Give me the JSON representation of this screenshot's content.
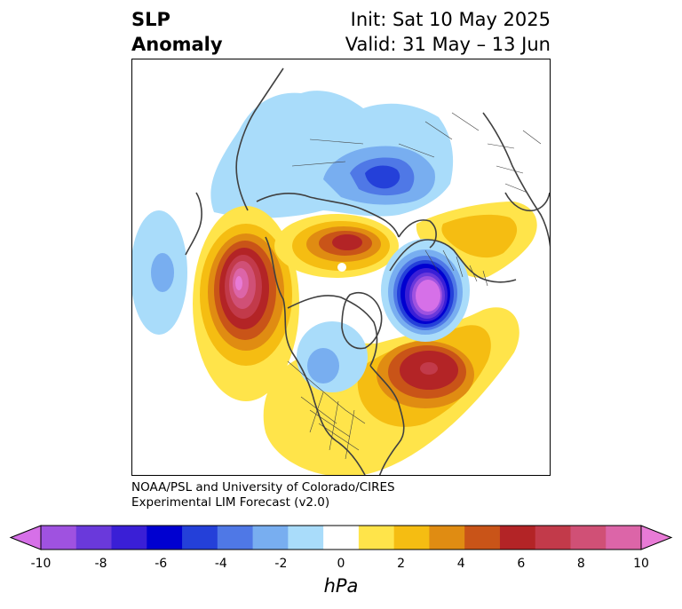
{
  "title": {
    "left_line1": "SLP",
    "left_line2": "Anomaly",
    "right_line1": "Init: Sat 10 May 2025",
    "right_line2": "Valid: 31 May – 13 Jun"
  },
  "credit": {
    "line1": "NOAA/PSL and University of Colorado/CIRES",
    "line2": "Experimental LIM Forecast (v2.0)"
  },
  "colorbar": {
    "unit": "hPa",
    "ticks": [
      "-10",
      "-8",
      "-6",
      "-4",
      "-2",
      "0",
      "2",
      "4",
      "6",
      "8",
      "10"
    ],
    "colors": [
      "#d670e8",
      "#9f52e0",
      "#6a39db",
      "#3a1fd6",
      "#0000d0",
      "#2440d9",
      "#4f78e6",
      "#78aef0",
      "#a9dcfa",
      "#ffffff",
      "#ffe44a",
      "#f5bd12",
      "#e08c12",
      "#c95418",
      "#b32426",
      "#c23a4a",
      "#d05076",
      "#dc65a8",
      "#e87bd6"
    ]
  },
  "map": {
    "projection": "north polar stereographic",
    "features": [
      {
        "name": "positive-anomaly-northeast-pacific",
        "value": "+8 to +10 hPa"
      },
      {
        "name": "positive-anomaly-north-atlantic",
        "value": "+6 hPa"
      },
      {
        "name": "positive-anomaly-siberia",
        "value": "+6 hPa"
      },
      {
        "name": "negative-anomaly-europe",
        "value": "-10 hPa"
      },
      {
        "name": "negative-anomaly-central-asia",
        "value": "-6 hPa"
      },
      {
        "name": "negative-anomaly-west-pacific",
        "value": "-4 hPa"
      }
    ]
  }
}
